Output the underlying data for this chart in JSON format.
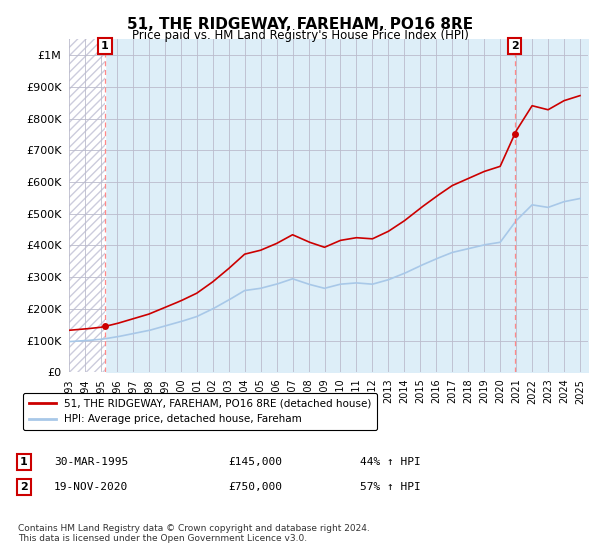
{
  "title": "51, THE RIDGEWAY, FAREHAM, PO16 8RE",
  "subtitle": "Price paid vs. HM Land Registry's House Price Index (HPI)",
  "legend_label_red": "51, THE RIDGEWAY, FAREHAM, PO16 8RE (detached house)",
  "legend_label_blue": "HPI: Average price, detached house, Fareham",
  "transaction1_date": "30-MAR-1995",
  "transaction1_price": "£145,000",
  "transaction1_hpi": "44% ↑ HPI",
  "transaction2_date": "19-NOV-2020",
  "transaction2_price": "£750,000",
  "transaction2_hpi": "57% ↑ HPI",
  "footnote": "Contains HM Land Registry data © Crown copyright and database right 2024.\nThis data is licensed under the Open Government Licence v3.0.",
  "ylim_max": 1050000,
  "yticks": [
    0,
    100000,
    200000,
    300000,
    400000,
    500000,
    600000,
    700000,
    800000,
    900000,
    1000000
  ],
  "ytick_labels": [
    "£0",
    "£100K",
    "£200K",
    "£300K",
    "£400K",
    "£500K",
    "£600K",
    "£700K",
    "£800K",
    "£900K",
    "£1M"
  ],
  "hpi_color": "#a8c8e8",
  "price_color": "#cc0000",
  "transaction1_x": 1995.25,
  "transaction1_y": 145000,
  "transaction2_x": 2020.9,
  "transaction2_y": 750000,
  "hatch_color": "#c8c8d8",
  "bg_right_color": "#ddeeff",
  "grid_color": "#bbbbcc",
  "marker_color": "#cc0000",
  "xmin": 1993.0,
  "xmax": 2025.5
}
